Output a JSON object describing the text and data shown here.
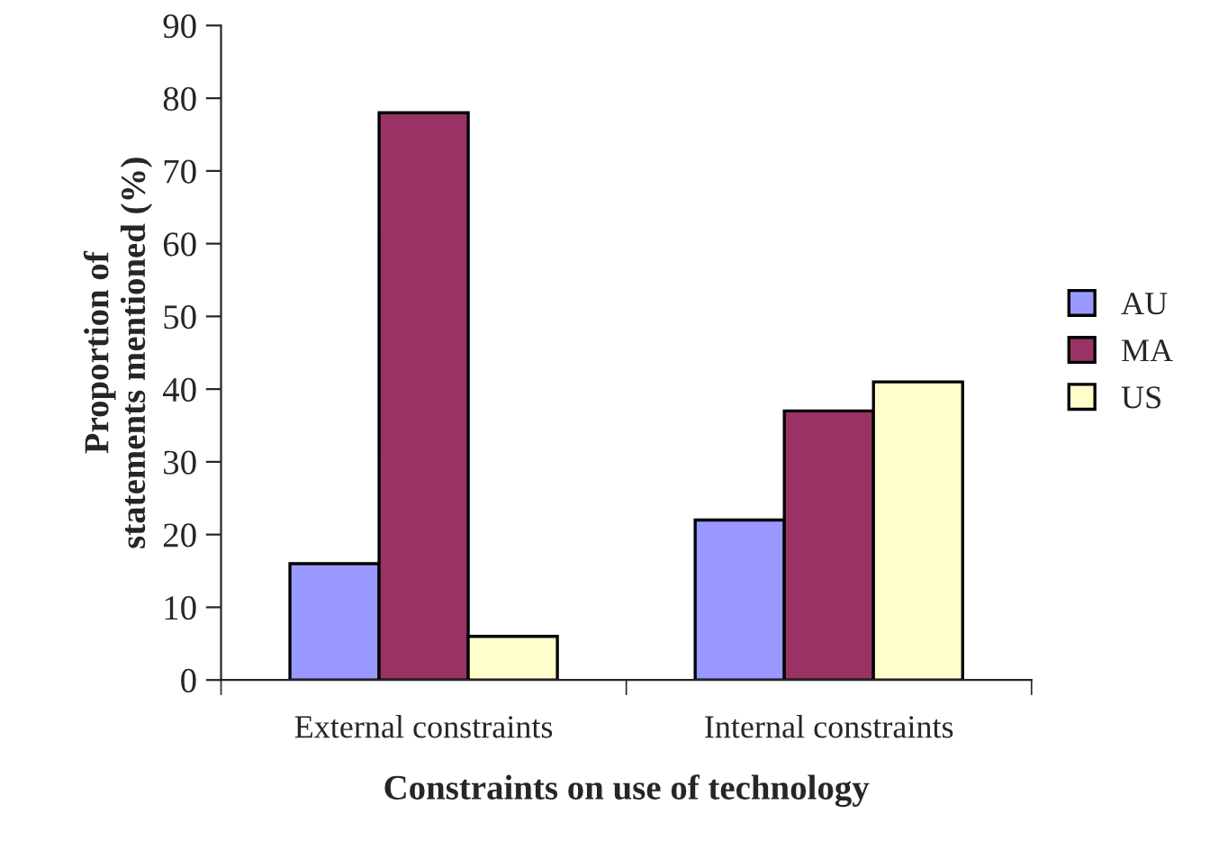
{
  "chart_data": {
    "type": "bar",
    "xlabel": "Constraints on use of technology",
    "ylabel": "Proportion of\nstatements mentioned (%)",
    "categories": [
      "External constraints",
      "Internal constraints"
    ],
    "series": [
      {
        "name": "AU",
        "color": "#9999ff",
        "values": [
          16,
          22
        ]
      },
      {
        "name": "MA",
        "color": "#993366",
        "values": [
          78,
          37
        ]
      },
      {
        "name": "US",
        "color": "#ffffcc",
        "values": [
          6,
          41
        ]
      }
    ],
    "ylim": [
      0,
      90
    ],
    "yticks": [
      0,
      10,
      20,
      30,
      40,
      50,
      60,
      70,
      80,
      90
    ],
    "grid": false,
    "legend": "right"
  }
}
